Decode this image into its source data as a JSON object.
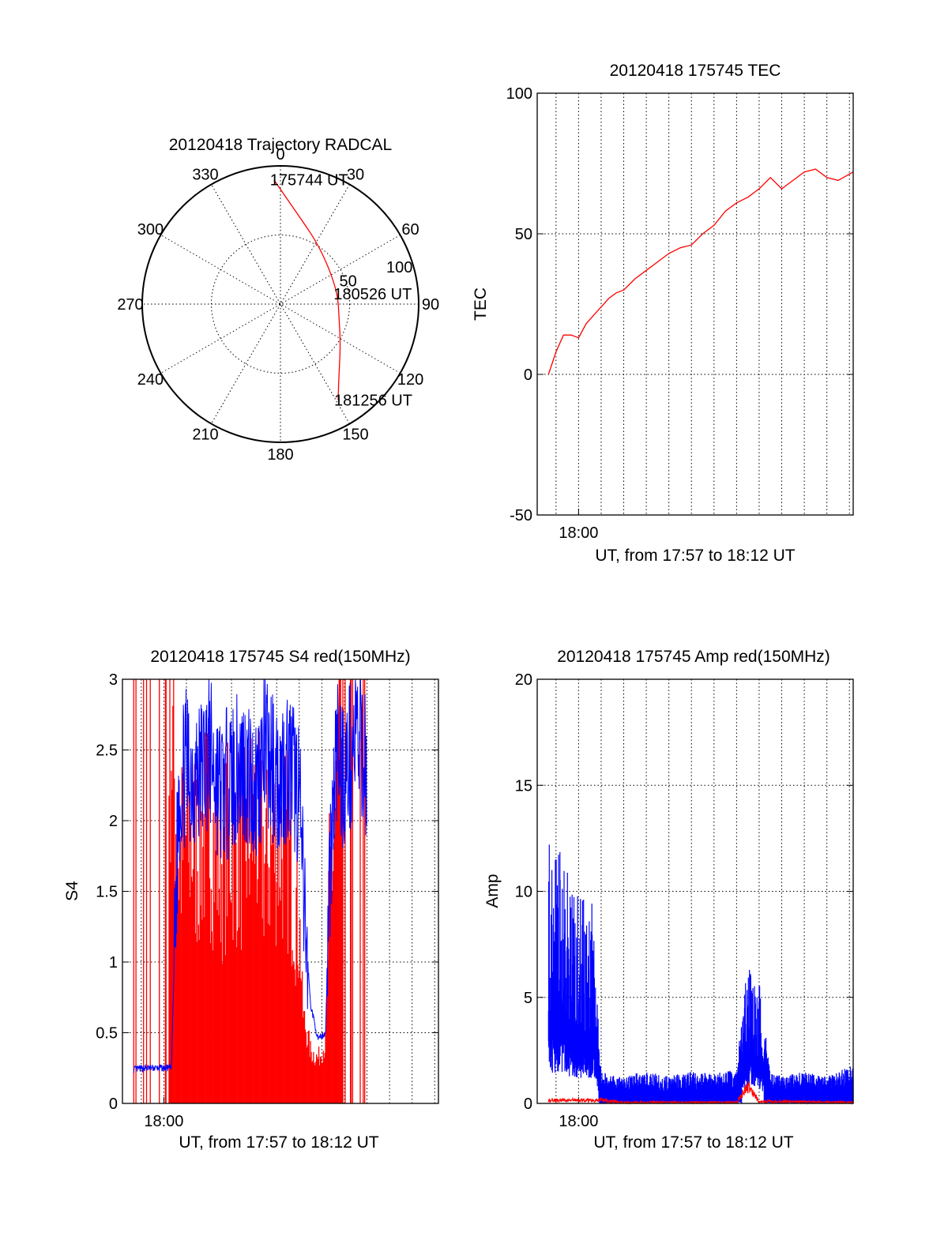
{
  "chart_data": [
    {
      "type": "polar-trajectory",
      "title": "20120418 Trajectory RADCAL",
      "angle_labels": [
        "0",
        "30",
        "60",
        "90",
        "120",
        "150",
        "180",
        "210",
        "240",
        "270",
        "300",
        "330"
      ],
      "radial_labels": [
        "50",
        "100"
      ],
      "rlim": [
        0,
        100
      ],
      "series": [
        {
          "color": "#ff0000",
          "points": [
            {
              "azimuth": 357,
              "r": 90
            },
            {
              "azimuth": 15,
              "r": 62
            },
            {
              "azimuth": 30,
              "r": 52
            },
            {
              "azimuth": 52,
              "r": 44
            },
            {
              "azimuth": 80,
              "r": 42
            },
            {
              "azimuth": 105,
              "r": 44
            },
            {
              "azimuth": 125,
              "r": 53
            },
            {
              "azimuth": 143,
              "r": 70
            },
            {
              "azimuth": 149,
              "r": 81
            }
          ]
        }
      ],
      "annotations": [
        {
          "text": "175744 UT",
          "azimuth": 357,
          "r": 90
        },
        {
          "text": "180526 UT",
          "azimuth": 80,
          "r": 42
        },
        {
          "text": "181256 UT",
          "azimuth": 149,
          "r": 81
        }
      ]
    },
    {
      "type": "line",
      "title": "20120418 175745 TEC",
      "ylabel": "TEC",
      "xlabel": "UT, from 17:57 to 18:12 UT",
      "xlim": [
        "17:58:10",
        "18:12:10"
      ],
      "ylim": [
        -50,
        100
      ],
      "yticks": [
        "-50",
        "0",
        "50",
        "100"
      ],
      "xtick_labels": [
        {
          "x": "18:00",
          "label": "18:00"
        }
      ],
      "grid": true,
      "series": [
        {
          "color": "#ff0000",
          "x": [
            "17:58:40",
            "17:59:00",
            "17:59:20",
            "17:59:40",
            "18:00:00",
            "18:00:20",
            "18:00:40",
            "18:01:00",
            "18:01:20",
            "18:01:40",
            "18:02:00",
            "18:02:30",
            "18:03:00",
            "18:03:30",
            "18:04:00",
            "18:04:30",
            "18:05:00",
            "18:05:30",
            "18:06:00",
            "18:06:30",
            "18:07:00",
            "18:07:30",
            "18:08:00",
            "18:08:30",
            "18:09:00",
            "18:09:30",
            "18:10:00",
            "18:10:30",
            "18:11:00",
            "18:11:30",
            "18:12:10"
          ],
          "y": [
            0,
            8,
            14,
            14,
            13,
            18,
            21,
            24,
            27,
            29,
            30,
            34,
            37,
            40,
            43,
            45,
            46,
            50,
            53,
            58,
            61,
            63,
            66,
            70,
            66,
            69,
            72,
            73,
            70,
            69,
            72
          ]
        }
      ]
    },
    {
      "type": "line",
      "title": "20120418 175745 S4 red(150MHz)",
      "ylabel": "S4",
      "xlabel": "UT, from 17:57 to 18:12 UT",
      "xlim": [
        "17:58:10",
        "18:12:10"
      ],
      "ylim": [
        0,
        3
      ],
      "yticks": [
        "0",
        "0.5",
        "1",
        "1.5",
        "2",
        "2.5",
        "3"
      ],
      "xtick_labels": [
        {
          "x": "18:00",
          "label": "18:00"
        }
      ],
      "grid": true,
      "series": [
        {
          "color": "#0000ff",
          "x": [
            "17:58:40",
            "17:59:10",
            "17:59:40",
            "18:00:10",
            "18:00:20",
            "18:00:40",
            "18:01:00",
            "18:01:30",
            "18:02:00",
            "18:02:30",
            "18:03:00",
            "18:03:30",
            "18:04:00",
            "18:04:30",
            "18:05:00",
            "18:05:30",
            "18:06:00",
            "18:06:10",
            "18:06:30",
            "18:06:50",
            "18:07:10",
            "18:07:20",
            "18:07:40",
            "18:08:00",
            "18:08:30",
            "18:09:00"
          ],
          "y": [
            0.24,
            0.25,
            0.25,
            0.25,
            0.25,
            2.2,
            2.4,
            2.3,
            2.5,
            2.2,
            2.3,
            2.4,
            2.2,
            2.5,
            2.3,
            2.4,
            2.2,
            1.5,
            0.7,
            0.45,
            0.5,
            1.6,
            2.5,
            2.3,
            2.6,
            2.4
          ]
        },
        {
          "color": "#ff0000",
          "x": [
            "17:58:40",
            "17:59:10",
            "17:59:40",
            "18:00:10",
            "18:00:40",
            "18:01:00",
            "18:01:30",
            "18:02:00",
            "18:02:30",
            "18:03:00",
            "18:03:30",
            "18:04:00",
            "18:04:30",
            "18:05:00",
            "18:05:30",
            "18:06:00",
            "18:06:10",
            "18:06:30",
            "18:06:50",
            "18:07:10",
            "18:07:20",
            "18:07:40",
            "18:08:00",
            "18:08:30",
            "18:09:00"
          ],
          "y": [
            3.0,
            3.0,
            3.0,
            3.0,
            1.6,
            1.8,
            1.7,
            1.9,
            1.6,
            1.8,
            1.7,
            1.9,
            1.6,
            1.8,
            1.7,
            1.2,
            0.6,
            0.35,
            0.3,
            0.4,
            1.4,
            2.0,
            3.0,
            3.0,
            3.0
          ]
        }
      ]
    },
    {
      "type": "line",
      "title": "20120418 175745 Amp red(150MHz)",
      "ylabel": "Amp",
      "xlabel": "UT, from 17:57 to 18:12 UT",
      "xlim": [
        "17:58:10",
        "18:12:10"
      ],
      "ylim": [
        0,
        20
      ],
      "yticks": [
        "0",
        "5",
        "10",
        "15",
        "20"
      ],
      "xtick_labels": [
        {
          "x": "18:00",
          "label": "18:00"
        }
      ],
      "grid": true,
      "series": [
        {
          "color": "#0000ff",
          "x": [
            "17:58:40",
            "17:59:00",
            "17:59:20",
            "17:59:40",
            "18:00:00",
            "18:00:20",
            "18:00:40",
            "18:01:00",
            "18:02:00",
            "18:03:00",
            "18:04:00",
            "18:05:00",
            "18:06:00",
            "18:07:00",
            "18:07:30",
            "18:08:00",
            "18:08:30",
            "18:09:00",
            "18:10:00",
            "18:11:00",
            "18:12:10"
          ],
          "y": [
            12.5,
            11.5,
            12.5,
            10,
            10,
            9.5,
            9.5,
            1.5,
            1.2,
            1.6,
            1.3,
            1.5,
            1.4,
            1.6,
            7,
            6,
            1.4,
            1.3,
            1.5,
            1.3,
            1.8
          ]
        },
        {
          "color": "#ff0000",
          "x": [
            "17:58:40",
            "18:01:00",
            "18:02:00",
            "18:05:00",
            "18:07:00",
            "18:07:30",
            "18:08:00",
            "18:12:10"
          ],
          "y": [
            0.15,
            0.15,
            0.05,
            0.05,
            0.05,
            0.8,
            0.1,
            0.05
          ]
        }
      ]
    }
  ]
}
